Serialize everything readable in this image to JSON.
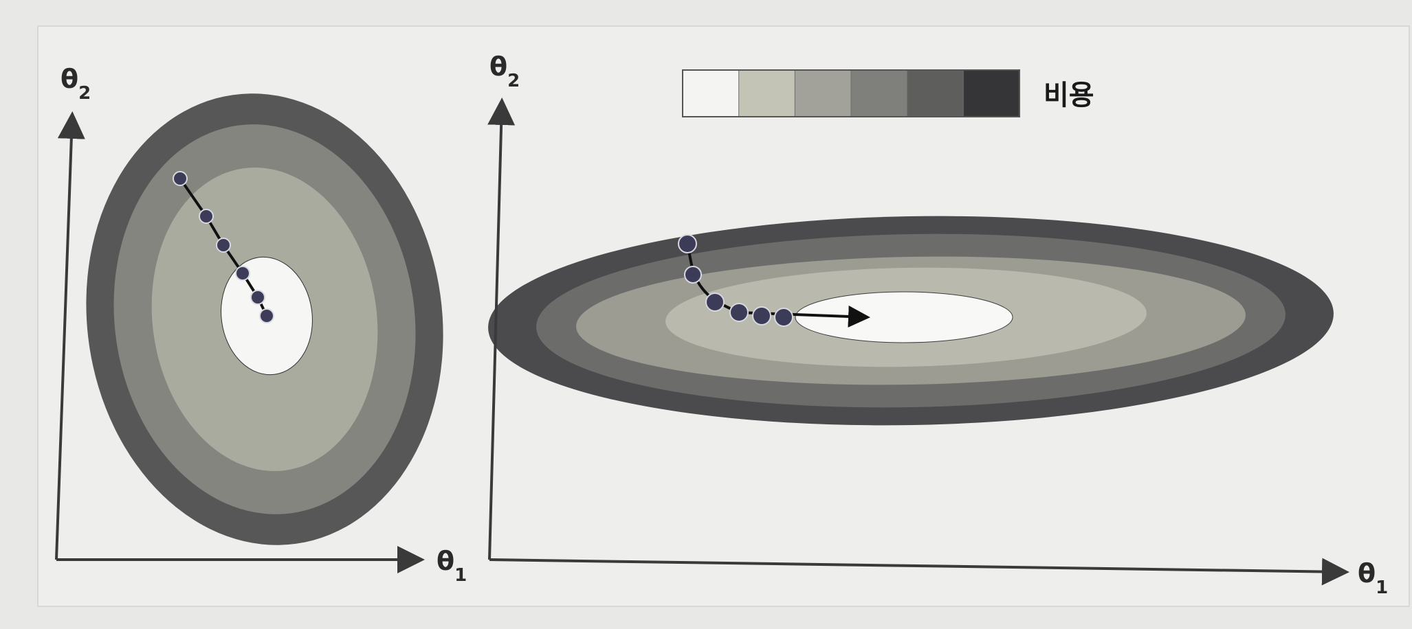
{
  "legend": {
    "label": "비용",
    "swatch_colors": [
      "#f4f4f2",
      "#c3c3b6",
      "#a2a29a",
      "#7f7f7c",
      "#5e5e5d",
      "#353538"
    ]
  },
  "left_plot": {
    "axis_x": {
      "label": "θ",
      "subscript": "1"
    },
    "axis_y": {
      "label": "θ",
      "subscript": "2"
    }
  },
  "right_plot": {
    "axis_x": {
      "label": "θ",
      "subscript": "1"
    },
    "axis_y": {
      "label": "θ",
      "subscript": "2"
    }
  },
  "colors": {
    "axis": "#3a3a3a",
    "path": "#111111",
    "point_fill": "#3c3c58",
    "point_stroke": "#d8d8e0",
    "background": "#e8e8e6"
  }
}
